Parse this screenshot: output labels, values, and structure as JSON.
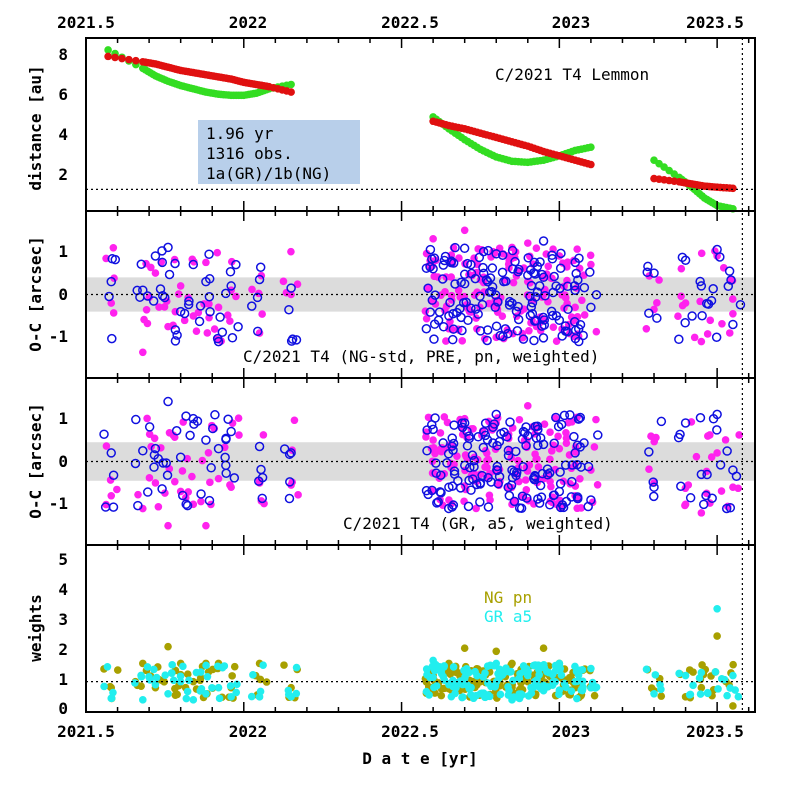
{
  "figure": {
    "x_axis_label": "D a t e [yr]",
    "x_ticks_bottom": [
      "2021.5",
      "2022",
      "2022.5",
      "2023",
      "2023.5"
    ],
    "x_ticks_top": [
      "2021.5",
      "2022",
      "2022.5",
      "2023",
      "2023.5"
    ]
  },
  "colors": {
    "green": "#33dd22",
    "red": "#e01010",
    "magenta": "#ff22ee",
    "blue": "#1010e0",
    "olive": "#a8a000",
    "cyan": "#22eeee",
    "info_box": "#b8cfea",
    "band": "#dcdcdc"
  },
  "chart_data": [
    {
      "type": "scatter",
      "panel": "distance",
      "title": "C/2021 T4 Lemmon",
      "ylabel": "distance [au]",
      "xlim": [
        2021.5,
        2023.62
      ],
      "ylim": [
        0.5,
        8.5
      ],
      "y_ticks": [
        "8",
        "6",
        "4",
        "2"
      ],
      "reference_line_y": 1.5,
      "info_box": {
        "lines": [
          "1.96 yr",
          "1316 obs.",
          "1a(GR)/1b(NG)"
        ]
      },
      "series": [
        {
          "color": "green",
          "x": [
            2021.57,
            2021.68,
            2021.72,
            2021.76,
            2021.8,
            2021.84,
            2021.88,
            2021.92,
            2021.96,
            2022.0,
            2022.04,
            2022.08,
            2022.15,
            2022.6,
            2022.65,
            2022.7,
            2022.75,
            2022.8,
            2022.85,
            2022.9,
            2022.95,
            2023.0,
            2023.05,
            2023.1,
            2023.3,
            2023.38,
            2023.42,
            2023.46,
            2023.5,
            2023.55
          ],
          "y": [
            7.95,
            7.1,
            6.75,
            6.5,
            6.3,
            6.15,
            6.0,
            5.9,
            5.85,
            5.85,
            5.95,
            6.15,
            6.35,
            4.85,
            4.3,
            3.8,
            3.35,
            3.0,
            2.8,
            2.75,
            2.85,
            3.05,
            3.3,
            3.45,
            2.85,
            2.05,
            1.6,
            1.1,
            0.75,
            0.6
          ]
        },
        {
          "color": "red",
          "x": [
            2021.57,
            2021.68,
            2021.72,
            2021.76,
            2021.8,
            2021.84,
            2021.88,
            2021.92,
            2021.96,
            2022.0,
            2022.04,
            2022.08,
            2022.15,
            2022.6,
            2022.65,
            2022.7,
            2022.75,
            2022.8,
            2022.85,
            2022.9,
            2022.95,
            2023.0,
            2023.05,
            2023.1,
            2023.3,
            2023.38,
            2023.42,
            2023.46,
            2023.5,
            2023.55
          ],
          "y": [
            7.65,
            7.4,
            7.3,
            7.15,
            7.0,
            6.9,
            6.8,
            6.7,
            6.6,
            6.45,
            6.35,
            6.25,
            6.0,
            4.65,
            4.45,
            4.3,
            4.1,
            3.9,
            3.7,
            3.5,
            3.25,
            3.05,
            2.85,
            2.65,
            2.0,
            1.85,
            1.75,
            1.65,
            1.6,
            1.55
          ]
        }
      ]
    },
    {
      "type": "scatter",
      "panel": "oc-ng",
      "title": "C/2021 T4 (NG-std, PRE, pn, weighted)",
      "ylabel": "O-C [arcsec]",
      "xlim": [
        2021.5,
        2023.62
      ],
      "ylim": [
        -1.95,
        1.95
      ],
      "y_ticks": [
        "1",
        "0",
        "-1"
      ],
      "band": [
        -0.4,
        0.4
      ],
      "reference_line_y": 0,
      "series": [
        {
          "name": "filled",
          "color": "magenta",
          "marker": "filled",
          "x": [
            2021.58,
            2021.68,
            2021.72,
            2021.76,
            2021.8,
            2021.84,
            2021.88,
            2021.92,
            2021.96,
            2022.05,
            2022.15,
            2022.6,
            2022.65,
            2022.7,
            2022.75,
            2022.8,
            2022.85,
            2022.9,
            2022.95,
            2023.0,
            2023.05,
            2023.1,
            2023.3,
            2023.4,
            2023.45,
            2023.5,
            2023.55
          ],
          "y": [
            -0.2,
            -1.35,
            0.5,
            -0.75,
            0.2,
            -0.5,
            0.75,
            -0.3,
            0.1,
            -0.9,
            0.0,
            1.3,
            -0.8,
            1.5,
            0.35,
            -1.0,
            1.1,
            1.2,
            -0.6,
            0.9,
            -0.3,
            0.7,
            -0.35,
            -0.2,
            -1.1,
            0.9,
            -0.45
          ]
        },
        {
          "name": "open",
          "color": "blue",
          "marker": "open",
          "x": [
            2021.58,
            2021.68,
            2021.72,
            2021.76,
            2021.8,
            2021.84,
            2021.88,
            2021.92,
            2021.96,
            2022.05,
            2022.15,
            2022.6,
            2022.65,
            2022.7,
            2022.75,
            2022.8,
            2022.85,
            2022.9,
            2022.95,
            2023.0,
            2023.05,
            2023.1,
            2023.3,
            2023.4,
            2023.45,
            2023.5,
            2023.55
          ],
          "y": [
            0.3,
            0.1,
            0.9,
            1.1,
            -0.4,
            0.7,
            0.3,
            -1.1,
            0.2,
            0.35,
            0.15,
            0.6,
            -0.5,
            0.25,
            -0.85,
            0.95,
            -0.2,
            0.45,
            1.25,
            -0.6,
            0.1,
            -0.3,
            0.5,
            0.8,
            0.2,
            1.05,
            -0.7
          ]
        }
      ]
    },
    {
      "type": "scatter",
      "panel": "oc-gr",
      "title": "C/2021 T4 (GR, a5, weighted)",
      "ylabel": "O-C [arcsec]",
      "xlim": [
        2021.5,
        2023.62
      ],
      "ylim": [
        -1.95,
        1.95
      ],
      "y_ticks": [
        "1",
        "0",
        "-1"
      ],
      "band": [
        -0.45,
        0.45
      ],
      "reference_line_y": 0,
      "series": [
        {
          "name": "filled",
          "color": "magenta",
          "marker": "filled",
          "x": [
            2021.58,
            2021.68,
            2021.72,
            2021.76,
            2021.8,
            2021.84,
            2021.88,
            2021.92,
            2021.96,
            2022.05,
            2022.15,
            2022.6,
            2022.65,
            2022.7,
            2022.75,
            2022.8,
            2022.85,
            2022.9,
            2022.95,
            2023.0,
            2023.05,
            2023.1,
            2023.3,
            2023.4,
            2023.45,
            2023.5,
            2023.55
          ],
          "y": [
            -0.8,
            -1.1,
            -0.5,
            -1.5,
            -0.7,
            -1.0,
            -1.5,
            -0.4,
            -0.6,
            -0.45,
            -0.55,
            0.5,
            -0.9,
            1.0,
            -0.3,
            0.9,
            -1.0,
            1.3,
            -0.4,
            0.3,
            -0.8,
            -0.2,
            -0.5,
            -1.0,
            -1.2,
            0.2,
            -0.6
          ]
        },
        {
          "name": "open",
          "color": "blue",
          "marker": "open",
          "x": [
            2021.58,
            2021.68,
            2021.72,
            2021.76,
            2021.8,
            2021.84,
            2021.88,
            2021.92,
            2021.96,
            2022.05,
            2022.15,
            2022.6,
            2022.65,
            2022.7,
            2022.75,
            2022.8,
            2022.85,
            2022.9,
            2022.95,
            2023.0,
            2023.05,
            2023.1,
            2023.3,
            2023.4,
            2023.45,
            2023.5,
            2023.55
          ],
          "y": [
            0.2,
            0.25,
            0.3,
            1.4,
            0.1,
            1.0,
            0.5,
            0.3,
            0.7,
            0.35,
            0.2,
            0.75,
            -0.6,
            0.9,
            -0.5,
            1.1,
            -0.2,
            0.6,
            0.4,
            -0.7,
            0.2,
            -0.9,
            -0.6,
            0.9,
            -0.3,
            1.1,
            -0.2
          ]
        }
      ]
    },
    {
      "type": "scatter",
      "panel": "weights",
      "ylabel": "weights",
      "xlim": [
        2021.5,
        2023.62
      ],
      "ylim": [
        0,
        5.5
      ],
      "y_ticks": [
        "5",
        "4",
        "3",
        "2",
        "1",
        "0"
      ],
      "reference_line_y": 1,
      "series": [
        {
          "name": "NG pn",
          "color": "olive",
          "x": [
            2021.58,
            2021.68,
            2021.72,
            2021.76,
            2021.8,
            2021.84,
            2021.88,
            2021.92,
            2021.96,
            2022.05,
            2022.15,
            2022.6,
            2022.65,
            2022.7,
            2022.75,
            2022.8,
            2022.85,
            2022.9,
            2022.95,
            2023.0,
            2023.05,
            2023.1,
            2023.3,
            2023.4,
            2023.45,
            2023.5,
            2023.55
          ],
          "y": [
            0.8,
            1.6,
            0.8,
            2.15,
            1.6,
            1.0,
            1.6,
            1.6,
            0.8,
            1.6,
            0.8,
            1.2,
            1.6,
            2.1,
            1.0,
            2.0,
            1.6,
            1.0,
            2.1,
            1.6,
            0.8,
            0.8,
            0.7,
            0.5,
            0.8,
            2.5,
            0.2
          ]
        },
        {
          "name": "GR a5",
          "color": "cyan",
          "x": [
            2021.58,
            2021.68,
            2021.72,
            2021.76,
            2021.8,
            2021.84,
            2021.88,
            2021.92,
            2021.96,
            2022.05,
            2022.15,
            2022.6,
            2022.65,
            2022.7,
            2022.75,
            2022.8,
            2022.85,
            2022.9,
            2022.95,
            2023.0,
            2023.05,
            2023.1,
            2023.3,
            2023.4,
            2023.45,
            2023.5,
            2023.55
          ],
          "y": [
            0.45,
            0.4,
            0.9,
            0.6,
            1.0,
            0.4,
            0.6,
            0.8,
            0.5,
            0.5,
            0.5,
            1.7,
            0.9,
            1.1,
            0.6,
            1.6,
            0.4,
            1.2,
            0.7,
            1.6,
            1.0,
            0.8,
            0.6,
            1.2,
            1.3,
            3.4,
            1.2
          ]
        }
      ]
    }
  ]
}
